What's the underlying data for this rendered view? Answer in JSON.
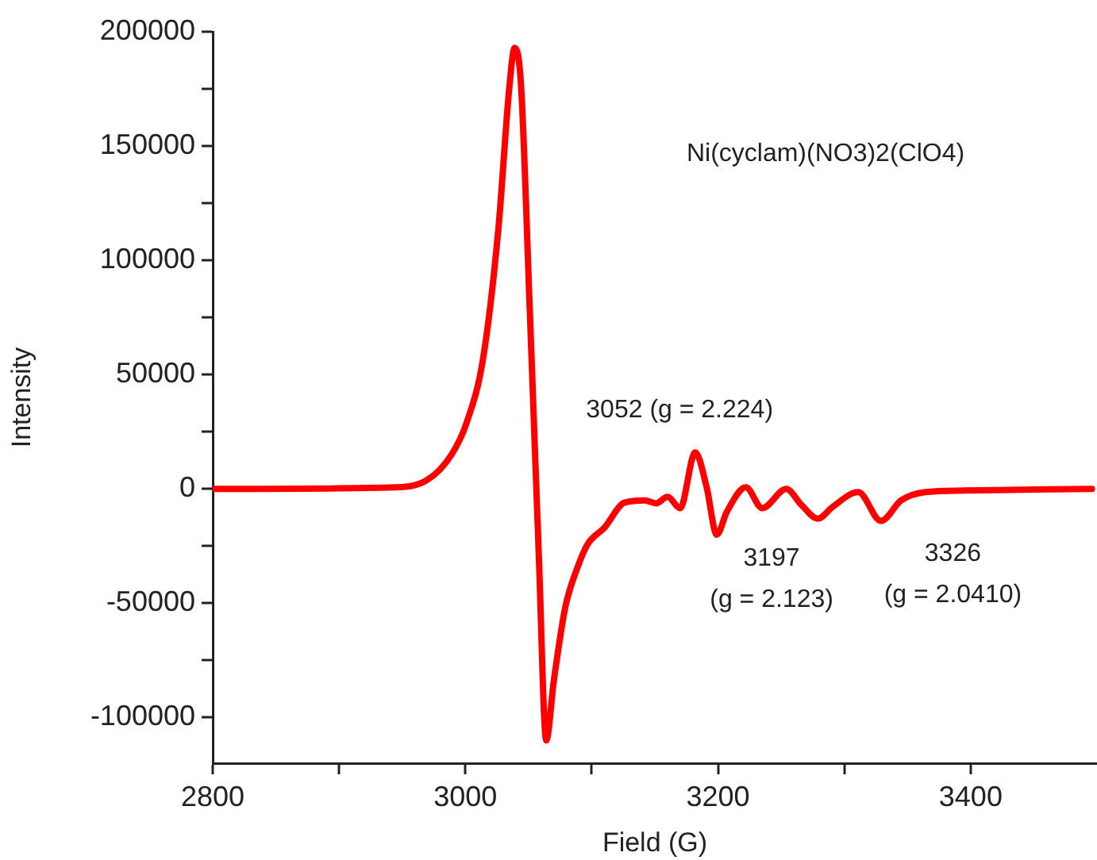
{
  "chart_data": {
    "type": "line",
    "xlabel": "Field (G)",
    "ylabel": "Intensity",
    "x": [
      2800,
      2945,
      2970,
      2989,
      3001,
      3014,
      3026,
      3035,
      3039,
      3044,
      3051,
      3058,
      3064,
      3070,
      3079,
      3089,
      3097,
      3110,
      3126,
      3142,
      3151,
      3160,
      3170,
      3182,
      3191,
      3199,
      3207,
      3222,
      3235,
      3254,
      3266,
      3279,
      3291,
      3311,
      3329,
      3345,
      3364,
      3395,
      3496
    ],
    "series": [
      {
        "color": "#ff0000",
        "values": [
          0,
          700,
          4000,
          15000,
          29000,
          57000,
          113000,
          177000,
          193000,
          177000,
          78000,
          -27000,
          -110000,
          -84000,
          -52000,
          -34000,
          -24000,
          -17000,
          -6000,
          -5000,
          -6300,
          -3500,
          -8400,
          16000,
          700,
          -20000,
          -10000,
          700,
          -8400,
          0,
          -7000,
          -13000,
          -7700,
          -1400,
          -14000,
          -5000,
          -1400,
          -700,
          0
        ]
      }
    ],
    "xlim": [
      2800,
      3500
    ],
    "xticks": [
      2800,
      {
        "value": 2900,
        "label": null
      },
      3000,
      {
        "value": 3100,
        "label": null
      },
      3200,
      {
        "value": 3300,
        "label": null
      },
      3400
    ],
    "ylim": [
      -120000,
      200000
    ],
    "yticks": [
      -100000,
      {
        "value": -75000,
        "label": null
      },
      -50000,
      {
        "value": -25000,
        "label": null
      },
      0,
      {
        "value": 25000,
        "label": null
      },
      50000,
      {
        "value": 75000,
        "label": null
      },
      100000,
      {
        "value": 125000,
        "label": null
      },
      150000,
      {
        "value": 175000,
        "label": null
      },
      200000
    ],
    "grid": false,
    "legend": false,
    "marker": "none",
    "line_style": "solid",
    "annotations": [
      "Ni(cyclam)(NO3)2(ClO4)",
      "3052 (g = 2.224)",
      "3197\n(g = 2.123)",
      "3326\n(g = 2.0410)"
    ]
  }
}
